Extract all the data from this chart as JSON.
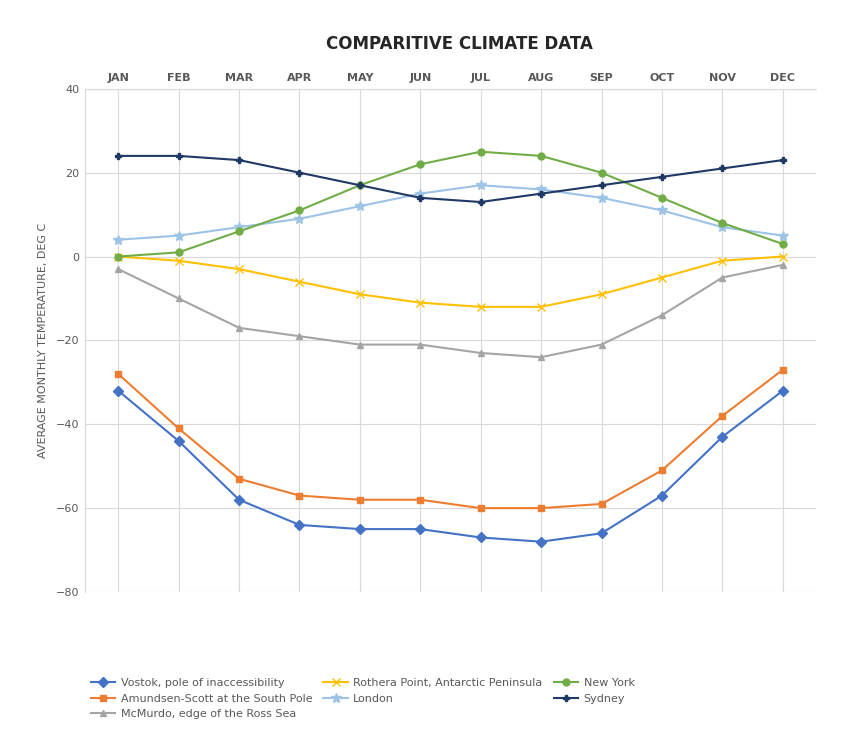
{
  "title": "COMPARITIVE CLIMATE DATA",
  "ylabel": "AVERAGE MONTHLY TEMPERATURE, DEG C",
  "months": [
    "JAN",
    "FEB",
    "MAR",
    "APR",
    "MAY",
    "JUN",
    "JUL",
    "AUG",
    "SEP",
    "OCT",
    "NOV",
    "DEC"
  ],
  "ylim": [
    -80,
    40
  ],
  "yticks": [
    -80,
    -60,
    -40,
    -20,
    0,
    20,
    40
  ],
  "series": [
    {
      "name": "Vostok, pole of inaccessibility",
      "color": "#4472C4",
      "marker": "D",
      "markersize": 5,
      "data": [
        -32,
        -44,
        -58,
        -64,
        -65,
        -65,
        -67,
        -68,
        -66,
        -57,
        -43,
        -32
      ]
    },
    {
      "name": "Amundsen-Scott at the South Pole",
      "color": "#ED7D31",
      "marker": "s",
      "markersize": 5,
      "data": [
        -28,
        -41,
        -53,
        -57,
        -58,
        -58,
        -60,
        -60,
        -59,
        -51,
        -38,
        -27
      ]
    },
    {
      "name": "McMurdo, edge of the Ross Sea",
      "color": "#A5A5A5",
      "marker": "^",
      "markersize": 5,
      "data": [
        -3,
        -10,
        -17,
        -19,
        -21,
        -21,
        -23,
        -24,
        -21,
        -14,
        -5,
        -2
      ]
    },
    {
      "name": "Rothera Point, Antarctic Peninsula",
      "color": "#FFC000",
      "marker": "x",
      "markersize": 6,
      "data": [
        0,
        -1,
        -3,
        -6,
        -9,
        -11,
        -12,
        -12,
        -9,
        -5,
        -1,
        0
      ]
    },
    {
      "name": "London",
      "color": "#9DC3E6",
      "marker": "*",
      "markersize": 7,
      "data": [
        4,
        5,
        7,
        9,
        12,
        15,
        17,
        16,
        14,
        11,
        7,
        5
      ]
    },
    {
      "name": "New York",
      "color": "#70AD47",
      "marker": "o",
      "markersize": 5,
      "data": [
        0,
        1,
        6,
        11,
        17,
        22,
        25,
        24,
        20,
        14,
        8,
        3
      ]
    },
    {
      "name": "Sydney",
      "color": "#1F3864",
      "marker": "P",
      "markersize": 5,
      "data": [
        24,
        24,
        23,
        20,
        17,
        14,
        13,
        15,
        17,
        19,
        21,
        23
      ]
    }
  ],
  "legend_order": [
    0,
    1,
    2,
    3,
    4,
    5,
    6
  ],
  "legend_ncol": 3,
  "background_color": "#FFFFFF",
  "grid_color": "#D9D9D9",
  "title_fontsize": 12,
  "label_fontsize": 8,
  "tick_fontsize": 8,
  "legend_fontsize": 8
}
